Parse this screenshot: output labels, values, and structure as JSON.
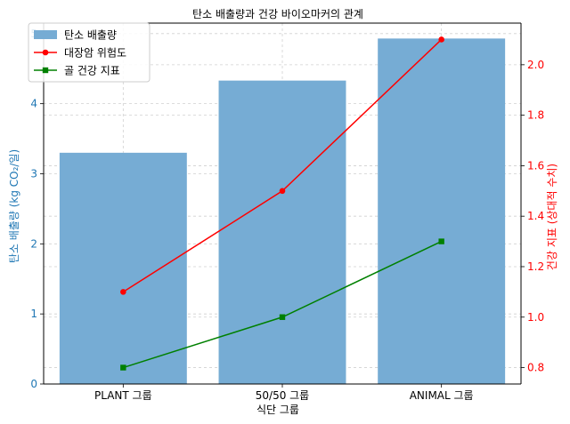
{
  "chart_data": {
    "type": "bar+line",
    "title": "탄소 배출량과 건강 바이오마커의 관계",
    "xlabel": "식단 그룹",
    "ylabel_left": "탄소 배출량 (kg CO₂/일)",
    "ylabel_right": "건강 지표 (상대적 수치)",
    "categories": [
      "PLANT 그룹",
      "50/50 그룹",
      "ANIMAL 그룹"
    ],
    "ylim_left": [
      0,
      5.15
    ],
    "ylim_right": [
      0.735,
      2.165
    ],
    "yticks_left": [
      "0",
      "1",
      "2",
      "3",
      "4",
      "5"
    ],
    "yticks_right": [
      "0.8",
      "1.0",
      "1.2",
      "1.4",
      "1.6",
      "1.8",
      "2.0"
    ],
    "grid": true,
    "legend_position": "top-left",
    "series": [
      {
        "name": "탄소 배출량",
        "kind": "bar",
        "axis": "left",
        "color": "#76acd4",
        "values": [
          3.3,
          4.33,
          4.93
        ]
      },
      {
        "name": "대장암 위험도",
        "kind": "line",
        "axis": "right",
        "marker": "circle",
        "color": "#ff0000",
        "values": [
          1.1,
          1.5,
          2.1
        ]
      },
      {
        "name": "골 건강 지표",
        "kind": "line",
        "axis": "right",
        "marker": "square",
        "color": "#008000",
        "values": [
          0.8,
          1.0,
          1.3
        ]
      }
    ],
    "left_axis_color": "#1f77b4",
    "right_axis_color": "#ff0000"
  }
}
